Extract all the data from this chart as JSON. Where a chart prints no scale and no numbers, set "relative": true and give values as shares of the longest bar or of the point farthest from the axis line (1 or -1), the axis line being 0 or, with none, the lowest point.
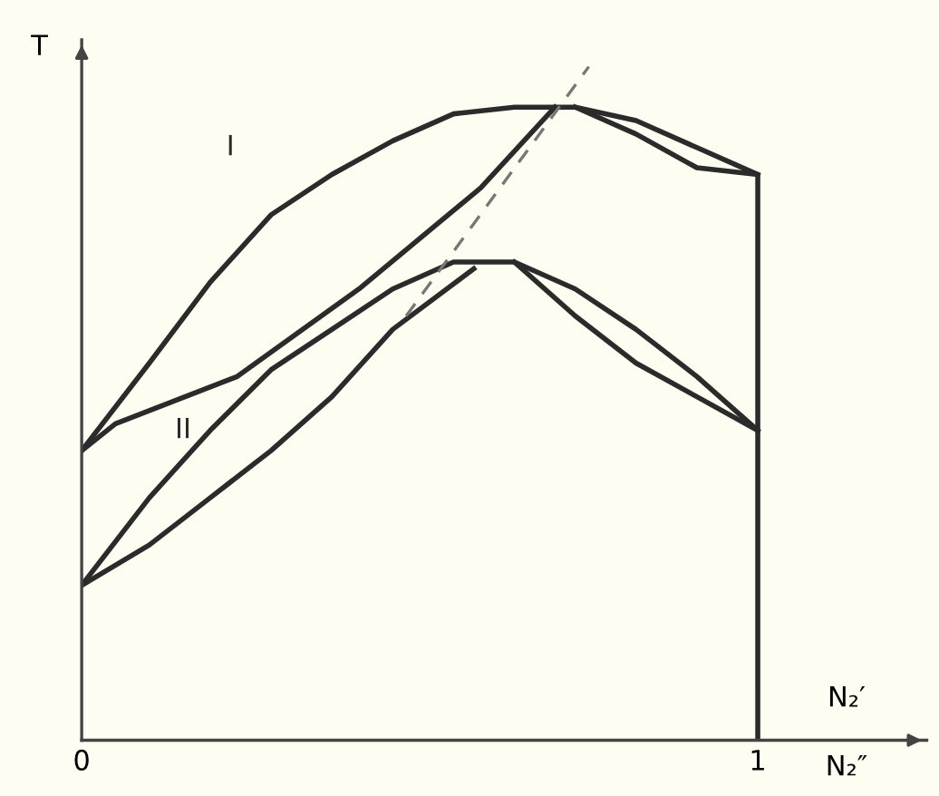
{
  "chart_data": {
    "type": "line",
    "relative": true,
    "ylabel": "T",
    "xlabel": "N₂″",
    "annotations": [
      "N₂′"
    ],
    "xlim": [
      0,
      1.25
    ],
    "xticks": [
      0,
      1
    ],
    "tick_labels": "x",
    "grid": false,
    "legend": false,
    "marker": "none",
    "series": [
      {
        "name": "I",
        "color": "#2b2b2b",
        "x": [
          0,
          0.1,
          0.19,
          0.28,
          0.37,
          0.46,
          0.55,
          0.64,
          0.73,
          0.82,
          0.91,
          1.0
        ],
        "values": [
          0.43,
          0.56,
          0.68,
          0.78,
          0.84,
          0.89,
          0.93,
          0.94,
          0.94,
          0.92,
          0.88,
          0.84
        ]
      },
      {
        "color": "#2b2b2b",
        "x": [
          0,
          0.05,
          0.23,
          0.41,
          0.59,
          0.7
        ],
        "values": [
          0.43,
          0.47,
          0.54,
          0.67,
          0.82,
          0.94
        ]
      },
      {
        "color": "#2b2b2b",
        "x": [
          0.73,
          0.82,
          0.91,
          1.0,
          1.0
        ],
        "values": [
          0.94,
          0.9,
          0.85,
          0.84,
          0.46
        ]
      },
      {
        "name": "II",
        "color": "#2b2b2b",
        "x": [
          0,
          0.1,
          0.19,
          0.28,
          0.37,
          0.46,
          0.55,
          0.64,
          0.73,
          0.82,
          0.91,
          1.0
        ],
        "values": [
          0.23,
          0.36,
          0.46,
          0.55,
          0.61,
          0.67,
          0.71,
          0.71,
          0.67,
          0.61,
          0.54,
          0.46
        ]
      },
      {
        "color": "#2b2b2b",
        "x": [
          0,
          0.1,
          0.19,
          0.28,
          0.37,
          0.46,
          0.58
        ],
        "values": [
          0.23,
          0.29,
          0.36,
          0.43,
          0.51,
          0.61,
          0.7
        ]
      },
      {
        "color": "#2b2b2b",
        "x": [
          0.64,
          0.73,
          0.82,
          0.91,
          1.0,
          1.0
        ],
        "values": [
          0.71,
          0.63,
          0.56,
          0.51,
          0.46,
          0
        ]
      },
      {
        "color": "#777777",
        "line_style": "dashed",
        "x": [
          0.48,
          0.75
        ],
        "values": [
          0.63,
          1.0
        ]
      }
    ]
  }
}
